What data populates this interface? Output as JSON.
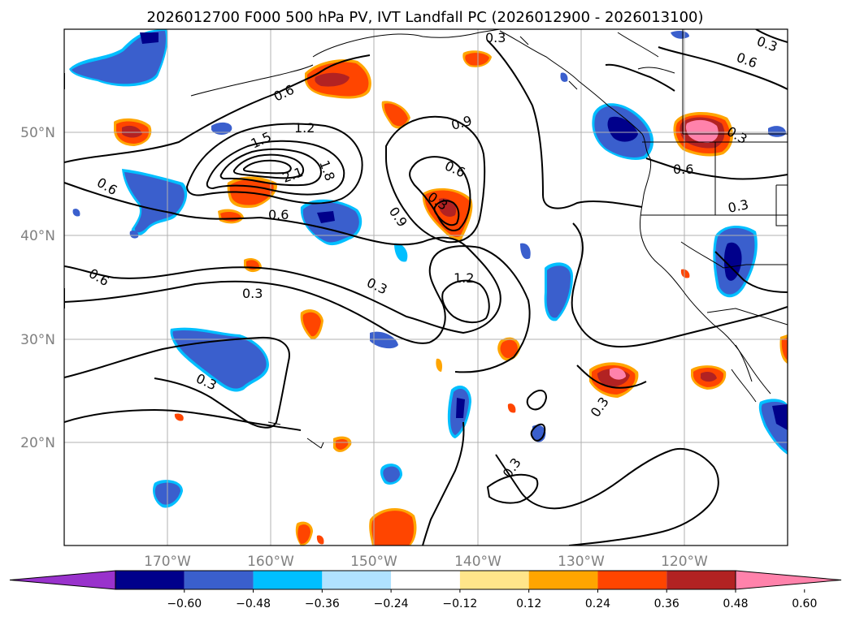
{
  "chart_data": {
    "type": "heatmap",
    "title": "2026012700 F000 500 hPa PV, IVT Landfall PC (2026012900 - 2026013100)",
    "map_extent": {
      "lon": [
        -180,
        -110
      ],
      "lat": [
        10,
        60
      ]
    },
    "x_ticks": [
      {
        "value": -170,
        "label": "170°W"
      },
      {
        "value": -160,
        "label": "160°W"
      },
      {
        "value": -150,
        "label": "150°W"
      },
      {
        "value": -140,
        "label": "140°W"
      },
      {
        "value": -130,
        "label": "130°W"
      },
      {
        "value": -120,
        "label": "120°W"
      }
    ],
    "y_ticks": [
      {
        "value": 50,
        "label": "50°N"
      },
      {
        "value": 40,
        "label": "40°N"
      },
      {
        "value": 30,
        "label": "30°N"
      },
      {
        "value": 20,
        "label": "20°N"
      }
    ],
    "colorbar": {
      "extend": "both",
      "levels": [
        -0.72,
        -0.6,
        -0.48,
        -0.36,
        -0.24,
        -0.12,
        0.12,
        0.24,
        0.36,
        0.48,
        0.6,
        0.72
      ],
      "colors": [
        "#9932CC",
        "#00008B",
        "#3A5FCD",
        "#00BFFF",
        "#B0E2FF",
        "#FFFFFF",
        "#FFE58A",
        "#FFA500",
        "#FF4500",
        "#B22222",
        "#FF82AB"
      ],
      "tick_labels": [
        "−0.60",
        "−0.48",
        "−0.36",
        "−0.24",
        "−0.12",
        "0.12",
        "0.24",
        "0.36",
        "0.48",
        "0.60"
      ]
    },
    "contour_field": "500 hPa PV (PVU)",
    "contour_labels": [
      {
        "text": "1.2",
        "lon": -157.5,
        "lat": 51.0
      },
      {
        "text": "1.5",
        "lon": -161.5,
        "lat": 49.0
      },
      {
        "text": "1.8",
        "lon": -153.5,
        "lat": 47.0
      },
      {
        "text": "2.1",
        "lon": -158.0,
        "lat": 46.0
      },
      {
        "text": "0.6",
        "lon": -157.0,
        "lat": 42.0
      },
      {
        "text": "0.6",
        "lon": -158.0,
        "lat": 54.0
      },
      {
        "text": "0.6",
        "lon": -174.0,
        "lat": 45.0
      },
      {
        "text": "0.6",
        "lon": -176.0,
        "lat": 35.0
      },
      {
        "text": "0.9",
        "lon": -141.0,
        "lat": 50.5
      },
      {
        "text": "0.6",
        "lon": -141.5,
        "lat": 47.0
      },
      {
        "text": "0.3",
        "lon": -143.0,
        "lat": 43.8
      },
      {
        "text": "0.9",
        "lon": -148.0,
        "lat": 41.5
      },
      {
        "text": "1.2",
        "lon": -141.0,
        "lat": 35.2
      },
      {
        "text": "0.3",
        "lon": -150.5,
        "lat": 34.5
      },
      {
        "text": "0.3",
        "lon": -162.5,
        "lat": 33.5
      },
      {
        "text": "0.3",
        "lon": -169.0,
        "lat": 26.5
      },
      {
        "text": "0.3",
        "lon": -137.5,
        "lat": 59.0
      },
      {
        "text": "0.6",
        "lon": -116.0,
        "lat": 57.5
      },
      {
        "text": "0.3",
        "lon": -112.0,
        "lat": 59.0
      },
      {
        "text": "0.3",
        "lon": -117.5,
        "lat": 50.0
      },
      {
        "text": "0.6",
        "lon": -121.0,
        "lat": 47.0
      },
      {
        "text": "0.3",
        "lon": -114.5,
        "lat": 42.8
      },
      {
        "text": "0.3",
        "lon": -127.5,
        "lat": 23.5
      },
      {
        "text": "0.3",
        "lon": -135.5,
        "lat": 14.5
      }
    ]
  }
}
